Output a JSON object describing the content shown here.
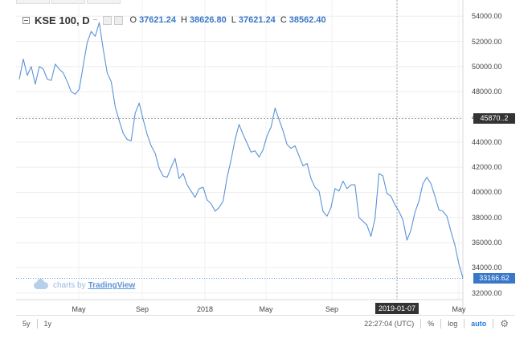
{
  "legend": {
    "symbol": "KSE 100, D",
    "caret": "~",
    "open_key": "O",
    "open": "37621.24",
    "high_key": "H",
    "high": "38626.80",
    "low_key": "L",
    "low": "37621.24",
    "close_key": "C",
    "close": "38562.40"
  },
  "watermark": {
    "prefix": "charts by",
    "link": "TradingView"
  },
  "price_labels": {
    "crosshair": "45870..2",
    "last": "33166.62"
  },
  "crosshair_date": "2019-01-07",
  "toolbar": {
    "range_5y": "5y",
    "range_1y": "1y",
    "time": "22:27:04 (UTC)",
    "percent": "%",
    "log": "log",
    "auto": "auto"
  },
  "colors": {
    "line": "#5b93d6",
    "crosshair_box": "#333333",
    "last_box": "#3977c9"
  },
  "chart_data": {
    "type": "line",
    "series": [
      {
        "values": [
          49000,
          50600,
          49300,
          50000,
          48600,
          50000,
          49800,
          49000,
          48900,
          50200,
          49800,
          49500,
          48800,
          48000,
          47800,
          48200,
          50100,
          51900,
          52800,
          52400,
          53500,
          51400,
          49500,
          48800,
          46800,
          45700,
          44700,
          44200,
          44100,
          46300,
          47100,
          45800,
          44600,
          43700,
          43100,
          41900,
          41300,
          41200,
          42000,
          42700,
          41100,
          41500,
          40600,
          40100,
          39600,
          40300,
          40400,
          39400,
          39100,
          38500,
          38800,
          39300,
          41200,
          42600,
          44200,
          45400,
          44600,
          43900,
          43200,
          43300,
          42800,
          43400,
          44500,
          45200,
          46700,
          45800,
          44900,
          43800,
          43500,
          43700,
          42900,
          42100,
          42300,
          41100,
          40400,
          40100,
          38500,
          38100,
          38800,
          40300,
          40100,
          40900,
          40300,
          40600,
          40600,
          38000,
          37700,
          37400,
          36500,
          37900,
          41500,
          41300,
          39900,
          39700,
          39000,
          38500,
          37800,
          36200,
          37000,
          38400,
          39300,
          40700,
          41200,
          40700,
          39700,
          38600,
          38500,
          38100,
          36900,
          35800,
          34300,
          33200
        ]
      }
    ],
    "dates_start": "2017-01-02",
    "x_ticks": [
      "May",
      "Sep",
      "2018",
      "May",
      "Sep",
      "2019-01-07",
      "May"
    ],
    "y_ticks": [
      32000,
      34000,
      36000,
      38000,
      40000,
      42000,
      44000,
      46000,
      48000,
      50000,
      52000,
      54000
    ],
    "ylim": [
      31600,
      54400
    ],
    "grid": true
  }
}
